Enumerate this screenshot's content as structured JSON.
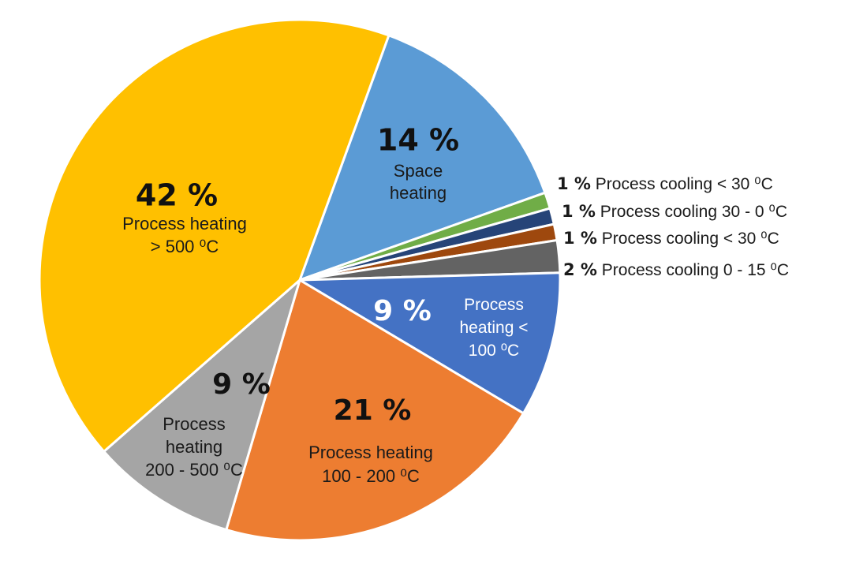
{
  "chart_data": {
    "type": "pie",
    "title": "",
    "legend": "none",
    "slices": [
      {
        "percent": "14 %",
        "value": 14,
        "label": [
          "Space",
          "heating"
        ],
        "color": "#5B9BD5",
        "label_color": "#1a1a1a",
        "pct_color": "#111111"
      },
      {
        "percent": "1 %",
        "value": 1,
        "label": [
          "Process cooling < 30 ⁰C"
        ],
        "color": "#70AD47",
        "outside": true
      },
      {
        "percent": "1 %",
        "value": 1,
        "label": [
          "Process cooling 30 - 0 ⁰C"
        ],
        "color": "#264478",
        "outside": true
      },
      {
        "percent": "1 %",
        "value": 1,
        "label": [
          "Process cooling < 30 ⁰C"
        ],
        "color": "#9E480E",
        "outside": true
      },
      {
        "percent": "2 %",
        "value": 2,
        "label": [
          "Process cooling 0 - 15 ⁰C"
        ],
        "color": "#636363",
        "outside": true
      },
      {
        "percent": "9 %",
        "value": 9,
        "label": [
          "Process",
          "heating <",
          "100 ⁰C"
        ],
        "color": "#4472C4",
        "label_color": "#ffffff",
        "pct_color": "#ffffff"
      },
      {
        "percent": "21 %",
        "value": 21,
        "label": [
          "Process heating",
          "100 - 200 ⁰C"
        ],
        "color": "#ED7D31",
        "label_color": "#1a1a1a",
        "pct_color": "#111111"
      },
      {
        "percent": "9 %",
        "value": 9,
        "label": [
          "Process",
          "heating",
          "200 - 500 ⁰C"
        ],
        "color": "#A5A5A5",
        "label_color": "#1a1a1a",
        "pct_color": "#111111"
      },
      {
        "percent": "42 %",
        "value": 42,
        "label": [
          "Process heating",
          "> 500 ⁰C"
        ],
        "color": "#FFC000",
        "label_color": "#1a1a1a",
        "pct_color": "#111111"
      }
    ]
  }
}
